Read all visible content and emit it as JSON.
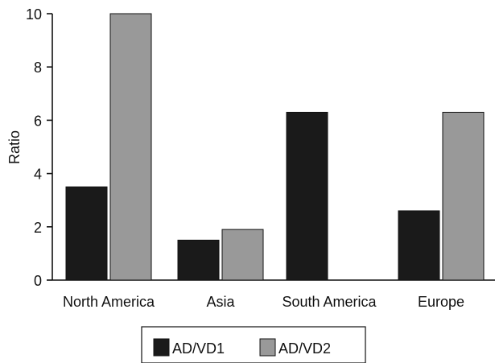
{
  "chart_data": {
    "type": "bar",
    "title": "",
    "xlabel": "",
    "ylabel": "Ratio",
    "categories": [
      "North America",
      "Asia",
      "South America",
      "Europe"
    ],
    "series": [
      {
        "name": "AD/VD1",
        "color": "#1a1a1a",
        "values": [
          3.5,
          1.5,
          6.3,
          2.6
        ]
      },
      {
        "name": "AD/VD2",
        "color": "#999999",
        "values": [
          10.0,
          1.9,
          0,
          6.3
        ]
      }
    ],
    "ylim": [
      0,
      10
    ],
    "yticks": [
      "0",
      "2",
      "4",
      "6",
      "8",
      "10"
    ],
    "grid": false,
    "legend_position": "bottom"
  }
}
